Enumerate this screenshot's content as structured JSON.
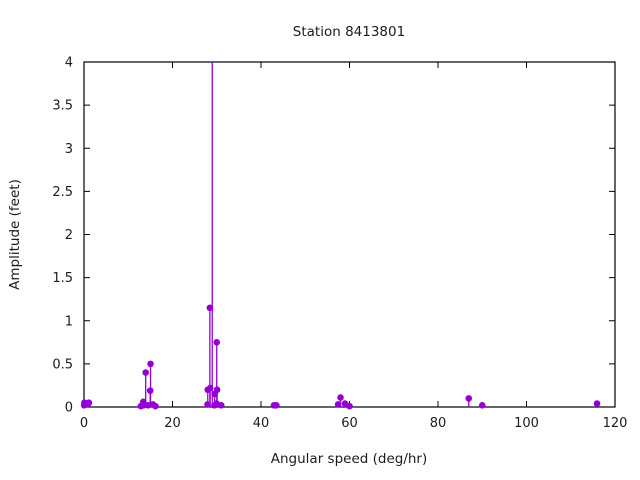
{
  "chart_data": {
    "type": "scatter",
    "style": "impulses-with-points (stem plot)",
    "title": "Station 8413801",
    "xlabel": "Angular speed (deg/hr)",
    "ylabel": "Amplitude (feet)",
    "xlim": [
      0,
      120
    ],
    "ylim": [
      0,
      4
    ],
    "xticks": [
      0,
      20,
      40,
      60,
      80,
      100,
      120
    ],
    "yticks": [
      0,
      0.5,
      1,
      1.5,
      2,
      2.5,
      3,
      3.5,
      4
    ],
    "grid": false,
    "legend_position": "none",
    "series_color": "#9400D3",
    "clip_note": "tallest stem near 29 deg/hr exceeds y-range and is clipped at the top plot border (no marker shown)",
    "points": [
      [
        0.04,
        0.02
      ],
      [
        0.08,
        0.05
      ],
      [
        0.54,
        0.03
      ],
      [
        1.02,
        0.04
      ],
      [
        1.1,
        0.05
      ],
      [
        12.85,
        0.01
      ],
      [
        13.4,
        0.06
      ],
      [
        13.47,
        0.02
      ],
      [
        13.94,
        0.4
      ],
      [
        14.49,
        0.02
      ],
      [
        14.96,
        0.19
      ],
      [
        15.04,
        0.5
      ],
      [
        15.59,
        0.03
      ],
      [
        16.14,
        0.01
      ],
      [
        27.9,
        0.03
      ],
      [
        27.97,
        0.2
      ],
      [
        28.44,
        1.15
      ],
      [
        28.51,
        0.22
      ],
      [
        28.98,
        4.0
      ],
      [
        29.46,
        0.02
      ],
      [
        29.53,
        0.15
      ],
      [
        29.96,
        0.04
      ],
      [
        30.0,
        0.75
      ],
      [
        30.08,
        0.2
      ],
      [
        31.02,
        0.02
      ],
      [
        42.93,
        0.02
      ],
      [
        43.48,
        0.02
      ],
      [
        57.42,
        0.03
      ],
      [
        57.97,
        0.11
      ],
      [
        58.98,
        0.04
      ],
      [
        60.0,
        0.01
      ],
      [
        86.95,
        0.1
      ],
      [
        90.0,
        0.02
      ],
      [
        115.94,
        0.04
      ]
    ]
  }
}
